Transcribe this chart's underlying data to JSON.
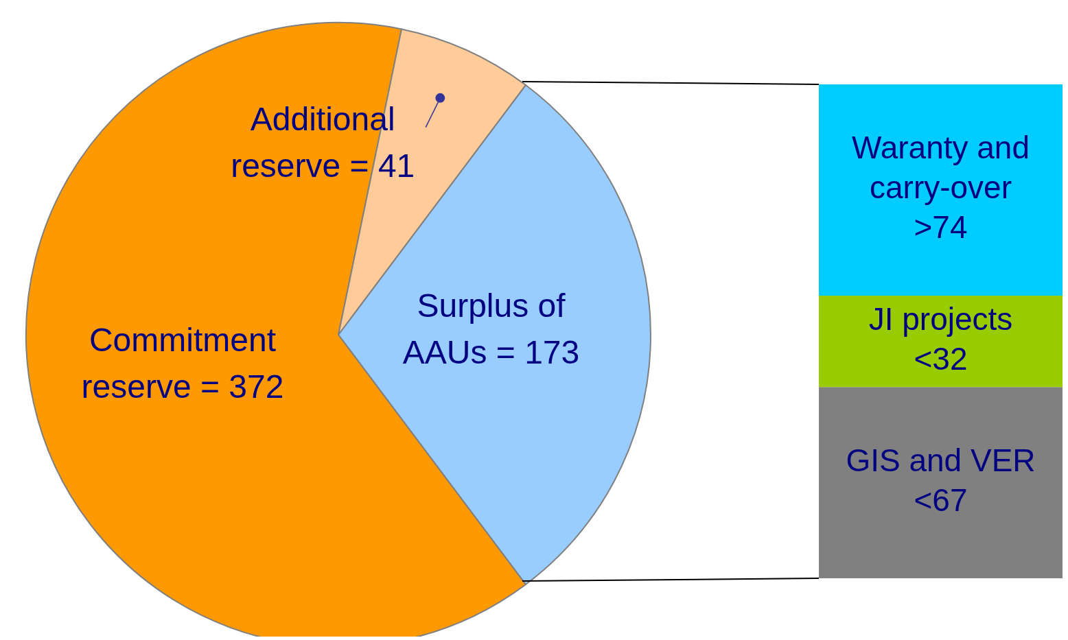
{
  "chart_data": [
    {
      "type": "pie",
      "categories": [
        "Surplus of AAUs",
        "Commitment reserve",
        "Additional reserve"
      ],
      "values": [
        173,
        372,
        41
      ],
      "colors": [
        "#99ccff",
        "#ff9900",
        "#ffcc99"
      ],
      "value_labels": [
        "= 173",
        "= 372",
        "= 41"
      ]
    },
    {
      "type": "bar",
      "stacked": true,
      "categories": [
        null
      ],
      "series": [
        {
          "name": "GIS and VER",
          "color": "#808080",
          "values": [
            67
          ],
          "value_labels": [
            "<67"
          ]
        },
        {
          "name": "JI projects",
          "color": "#99cc00",
          "values": [
            32
          ],
          "value_labels": [
            "<32"
          ]
        },
        {
          "name": "Waranty and carry-over",
          "color": "#00ccff",
          "values": [
            74
          ],
          "value_labels": [
            ">74"
          ]
        }
      ]
    }
  ]
}
